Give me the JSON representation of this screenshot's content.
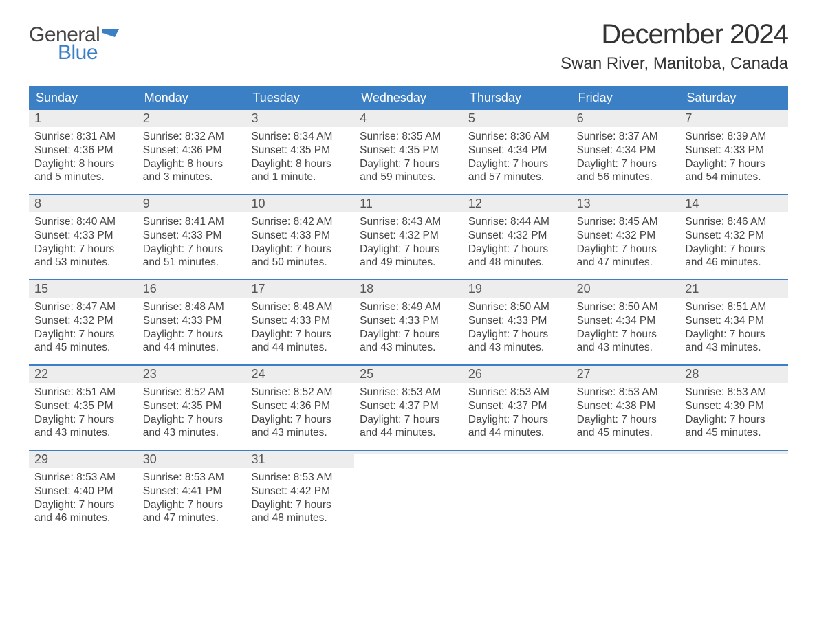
{
  "logo": {
    "text1": "General",
    "text2": "Blue",
    "flag_color": "#3b7fc4"
  },
  "title": "December 2024",
  "location": "Swan River, Manitoba, Canada",
  "colors": {
    "header_bg": "#3b7fc4",
    "header_text": "#ffffff",
    "daynum_bg": "#ededed",
    "text": "#444444",
    "row_border": "#3b7fc4"
  },
  "weekdays": [
    "Sunday",
    "Monday",
    "Tuesday",
    "Wednesday",
    "Thursday",
    "Friday",
    "Saturday"
  ],
  "weeks": [
    [
      {
        "day": "1",
        "sunrise": "Sunrise: 8:31 AM",
        "sunset": "Sunset: 4:36 PM",
        "daylight1": "Daylight: 8 hours",
        "daylight2": "and 5 minutes."
      },
      {
        "day": "2",
        "sunrise": "Sunrise: 8:32 AM",
        "sunset": "Sunset: 4:36 PM",
        "daylight1": "Daylight: 8 hours",
        "daylight2": "and 3 minutes."
      },
      {
        "day": "3",
        "sunrise": "Sunrise: 8:34 AM",
        "sunset": "Sunset: 4:35 PM",
        "daylight1": "Daylight: 8 hours",
        "daylight2": "and 1 minute."
      },
      {
        "day": "4",
        "sunrise": "Sunrise: 8:35 AM",
        "sunset": "Sunset: 4:35 PM",
        "daylight1": "Daylight: 7 hours",
        "daylight2": "and 59 minutes."
      },
      {
        "day": "5",
        "sunrise": "Sunrise: 8:36 AM",
        "sunset": "Sunset: 4:34 PM",
        "daylight1": "Daylight: 7 hours",
        "daylight2": "and 57 minutes."
      },
      {
        "day": "6",
        "sunrise": "Sunrise: 8:37 AM",
        "sunset": "Sunset: 4:34 PM",
        "daylight1": "Daylight: 7 hours",
        "daylight2": "and 56 minutes."
      },
      {
        "day": "7",
        "sunrise": "Sunrise: 8:39 AM",
        "sunset": "Sunset: 4:33 PM",
        "daylight1": "Daylight: 7 hours",
        "daylight2": "and 54 minutes."
      }
    ],
    [
      {
        "day": "8",
        "sunrise": "Sunrise: 8:40 AM",
        "sunset": "Sunset: 4:33 PM",
        "daylight1": "Daylight: 7 hours",
        "daylight2": "and 53 minutes."
      },
      {
        "day": "9",
        "sunrise": "Sunrise: 8:41 AM",
        "sunset": "Sunset: 4:33 PM",
        "daylight1": "Daylight: 7 hours",
        "daylight2": "and 51 minutes."
      },
      {
        "day": "10",
        "sunrise": "Sunrise: 8:42 AM",
        "sunset": "Sunset: 4:33 PM",
        "daylight1": "Daylight: 7 hours",
        "daylight2": "and 50 minutes."
      },
      {
        "day": "11",
        "sunrise": "Sunrise: 8:43 AM",
        "sunset": "Sunset: 4:32 PM",
        "daylight1": "Daylight: 7 hours",
        "daylight2": "and 49 minutes."
      },
      {
        "day": "12",
        "sunrise": "Sunrise: 8:44 AM",
        "sunset": "Sunset: 4:32 PM",
        "daylight1": "Daylight: 7 hours",
        "daylight2": "and 48 minutes."
      },
      {
        "day": "13",
        "sunrise": "Sunrise: 8:45 AM",
        "sunset": "Sunset: 4:32 PM",
        "daylight1": "Daylight: 7 hours",
        "daylight2": "and 47 minutes."
      },
      {
        "day": "14",
        "sunrise": "Sunrise: 8:46 AM",
        "sunset": "Sunset: 4:32 PM",
        "daylight1": "Daylight: 7 hours",
        "daylight2": "and 46 minutes."
      }
    ],
    [
      {
        "day": "15",
        "sunrise": "Sunrise: 8:47 AM",
        "sunset": "Sunset: 4:32 PM",
        "daylight1": "Daylight: 7 hours",
        "daylight2": "and 45 minutes."
      },
      {
        "day": "16",
        "sunrise": "Sunrise: 8:48 AM",
        "sunset": "Sunset: 4:33 PM",
        "daylight1": "Daylight: 7 hours",
        "daylight2": "and 44 minutes."
      },
      {
        "day": "17",
        "sunrise": "Sunrise: 8:48 AM",
        "sunset": "Sunset: 4:33 PM",
        "daylight1": "Daylight: 7 hours",
        "daylight2": "and 44 minutes."
      },
      {
        "day": "18",
        "sunrise": "Sunrise: 8:49 AM",
        "sunset": "Sunset: 4:33 PM",
        "daylight1": "Daylight: 7 hours",
        "daylight2": "and 43 minutes."
      },
      {
        "day": "19",
        "sunrise": "Sunrise: 8:50 AM",
        "sunset": "Sunset: 4:33 PM",
        "daylight1": "Daylight: 7 hours",
        "daylight2": "and 43 minutes."
      },
      {
        "day": "20",
        "sunrise": "Sunrise: 8:50 AM",
        "sunset": "Sunset: 4:34 PM",
        "daylight1": "Daylight: 7 hours",
        "daylight2": "and 43 minutes."
      },
      {
        "day": "21",
        "sunrise": "Sunrise: 8:51 AM",
        "sunset": "Sunset: 4:34 PM",
        "daylight1": "Daylight: 7 hours",
        "daylight2": "and 43 minutes."
      }
    ],
    [
      {
        "day": "22",
        "sunrise": "Sunrise: 8:51 AM",
        "sunset": "Sunset: 4:35 PM",
        "daylight1": "Daylight: 7 hours",
        "daylight2": "and 43 minutes."
      },
      {
        "day": "23",
        "sunrise": "Sunrise: 8:52 AM",
        "sunset": "Sunset: 4:35 PM",
        "daylight1": "Daylight: 7 hours",
        "daylight2": "and 43 minutes."
      },
      {
        "day": "24",
        "sunrise": "Sunrise: 8:52 AM",
        "sunset": "Sunset: 4:36 PM",
        "daylight1": "Daylight: 7 hours",
        "daylight2": "and 43 minutes."
      },
      {
        "day": "25",
        "sunrise": "Sunrise: 8:53 AM",
        "sunset": "Sunset: 4:37 PM",
        "daylight1": "Daylight: 7 hours",
        "daylight2": "and 44 minutes."
      },
      {
        "day": "26",
        "sunrise": "Sunrise: 8:53 AM",
        "sunset": "Sunset: 4:37 PM",
        "daylight1": "Daylight: 7 hours",
        "daylight2": "and 44 minutes."
      },
      {
        "day": "27",
        "sunrise": "Sunrise: 8:53 AM",
        "sunset": "Sunset: 4:38 PM",
        "daylight1": "Daylight: 7 hours",
        "daylight2": "and 45 minutes."
      },
      {
        "day": "28",
        "sunrise": "Sunrise: 8:53 AM",
        "sunset": "Sunset: 4:39 PM",
        "daylight1": "Daylight: 7 hours",
        "daylight2": "and 45 minutes."
      }
    ],
    [
      {
        "day": "29",
        "sunrise": "Sunrise: 8:53 AM",
        "sunset": "Sunset: 4:40 PM",
        "daylight1": "Daylight: 7 hours",
        "daylight2": "and 46 minutes."
      },
      {
        "day": "30",
        "sunrise": "Sunrise: 8:53 AM",
        "sunset": "Sunset: 4:41 PM",
        "daylight1": "Daylight: 7 hours",
        "daylight2": "and 47 minutes."
      },
      {
        "day": "31",
        "sunrise": "Sunrise: 8:53 AM",
        "sunset": "Sunset: 4:42 PM",
        "daylight1": "Daylight: 7 hours",
        "daylight2": "and 48 minutes."
      },
      null,
      null,
      null,
      null
    ]
  ]
}
